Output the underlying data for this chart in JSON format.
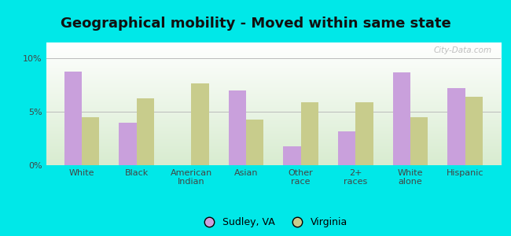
{
  "title": "Geographical mobility - Moved within same state",
  "categories": [
    "White",
    "Black",
    "American\nIndian",
    "Asian",
    "Other\nrace",
    "2+\nraces",
    "White\nalone",
    "Hispanic"
  ],
  "sudley_values": [
    8.8,
    4.0,
    0.0,
    7.0,
    1.8,
    3.2,
    8.7,
    7.2
  ],
  "virginia_values": [
    4.5,
    6.3,
    7.7,
    4.3,
    5.9,
    5.9,
    4.5,
    6.4
  ],
  "sudley_color": "#c9a0dc",
  "virginia_color": "#c8cc8c",
  "legend_sudley": "Sudley, VA",
  "legend_virginia": "Virginia",
  "yticks": [
    0,
    5,
    10
  ],
  "ytick_labels": [
    "0%",
    "5%",
    "10%"
  ],
  "ylim": [
    0,
    11.5
  ],
  "bg_outer": "#00e8e8",
  "watermark": "City-Data.com",
  "bar_width": 0.32,
  "title_fontsize": 13,
  "tick_fontsize": 8,
  "legend_fontsize": 9
}
